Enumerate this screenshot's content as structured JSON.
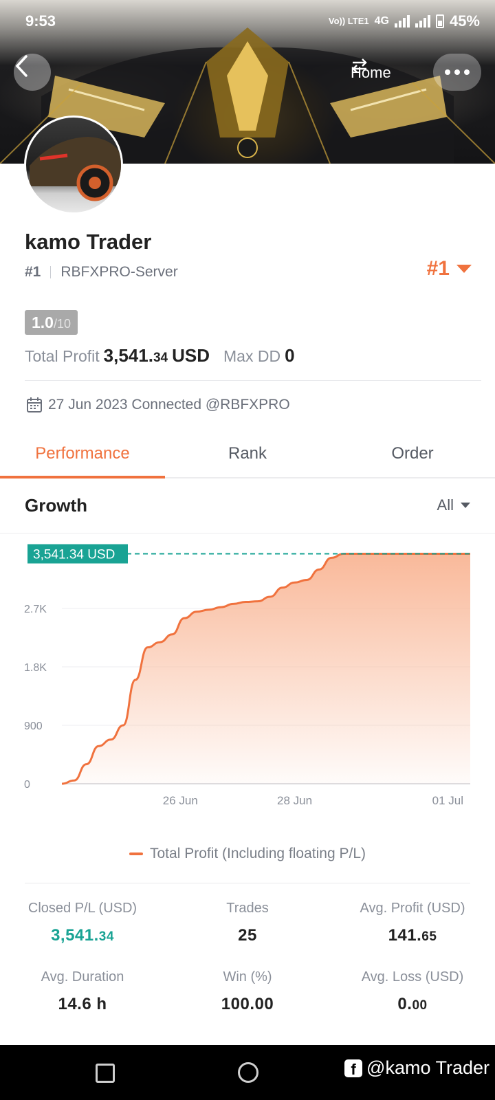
{
  "status_bar": {
    "time": "9:53",
    "volte": "Vo)) LTE1",
    "network": "4G",
    "battery": "45%"
  },
  "header": {
    "home_label": "Home"
  },
  "profile": {
    "name": "kamo Trader",
    "rank": "#1",
    "server": "RBFXPRO-Server",
    "rank_badge": "#1",
    "score_value": "1.0",
    "score_max": "/10",
    "total_profit_label": "Total Profit",
    "total_profit_int": "3,541.",
    "total_profit_dec": "34",
    "total_profit_unit": "USD",
    "max_dd_label": "Max DD",
    "max_dd_value": "0",
    "connected_text": "27 Jun 2023 Connected @RBFXPRO"
  },
  "tabs": [
    {
      "label": "Performance",
      "active": true
    },
    {
      "label": "Rank",
      "active": false
    },
    {
      "label": "Order",
      "active": false
    }
  ],
  "growth": {
    "title": "Growth",
    "filter": "All"
  },
  "chart_data": {
    "type": "area",
    "current_label": "3,541.34 USD",
    "y_ticks": [
      "0",
      "900",
      "1.8K",
      "2.7K"
    ],
    "y_tick_values": [
      0,
      900,
      1800,
      2700
    ],
    "ylim": [
      0,
      3600
    ],
    "x_ticks": [
      "26 Jun",
      "28 Jun",
      "01 Jul"
    ],
    "x_tick_positions": [
      0.29,
      0.57,
      0.945
    ],
    "series": [
      {
        "name": "Total Profit (Including floating P/L)",
        "x": [
          0,
          0.03,
          0.06,
          0.09,
          0.12,
          0.15,
          0.18,
          0.21,
          0.24,
          0.27,
          0.3,
          0.33,
          0.36,
          0.39,
          0.42,
          0.45,
          0.48,
          0.51,
          0.54,
          0.57,
          0.6,
          0.63,
          0.66,
          0.69,
          0.72,
          0.75,
          0.78,
          0.81,
          0.84,
          0.87,
          0.9,
          0.93,
          0.96,
          1.0
        ],
        "values": [
          0,
          50,
          300,
          580,
          680,
          900,
          1600,
          2100,
          2180,
          2300,
          2550,
          2650,
          2680,
          2720,
          2770,
          2800,
          2810,
          2880,
          3020,
          3100,
          3140,
          3300,
          3480,
          3541.34,
          3541.34,
          3541.34,
          3541.34,
          3541.34,
          3541.34,
          3541.34,
          3541.34,
          3541.34,
          3541.34,
          3541.34
        ]
      }
    ],
    "colors": {
      "line": "#f0723e",
      "fill_top": "#f9b99a",
      "marker": "#19a394"
    }
  },
  "legend": {
    "label": "Total Profit (Including floating P/L)"
  },
  "stats": [
    {
      "label": "Closed P/L (USD)",
      "int": "3,541.",
      "dec": "34",
      "teal": true
    },
    {
      "label": "Trades",
      "int": "25",
      "dec": "",
      "teal": false
    },
    {
      "label": "Avg. Profit (USD)",
      "int": "141.",
      "dec": "65",
      "teal": false
    },
    {
      "label": "Avg. Duration",
      "int": "14.6 h",
      "dec": "",
      "teal": false
    },
    {
      "label": "Win (%)",
      "int": "100.00",
      "dec": "",
      "teal": false
    },
    {
      "label": "Avg. Loss (USD)",
      "int": "0.",
      "dec": "00",
      "teal": false
    }
  ],
  "watermark": "@kamo Trader"
}
